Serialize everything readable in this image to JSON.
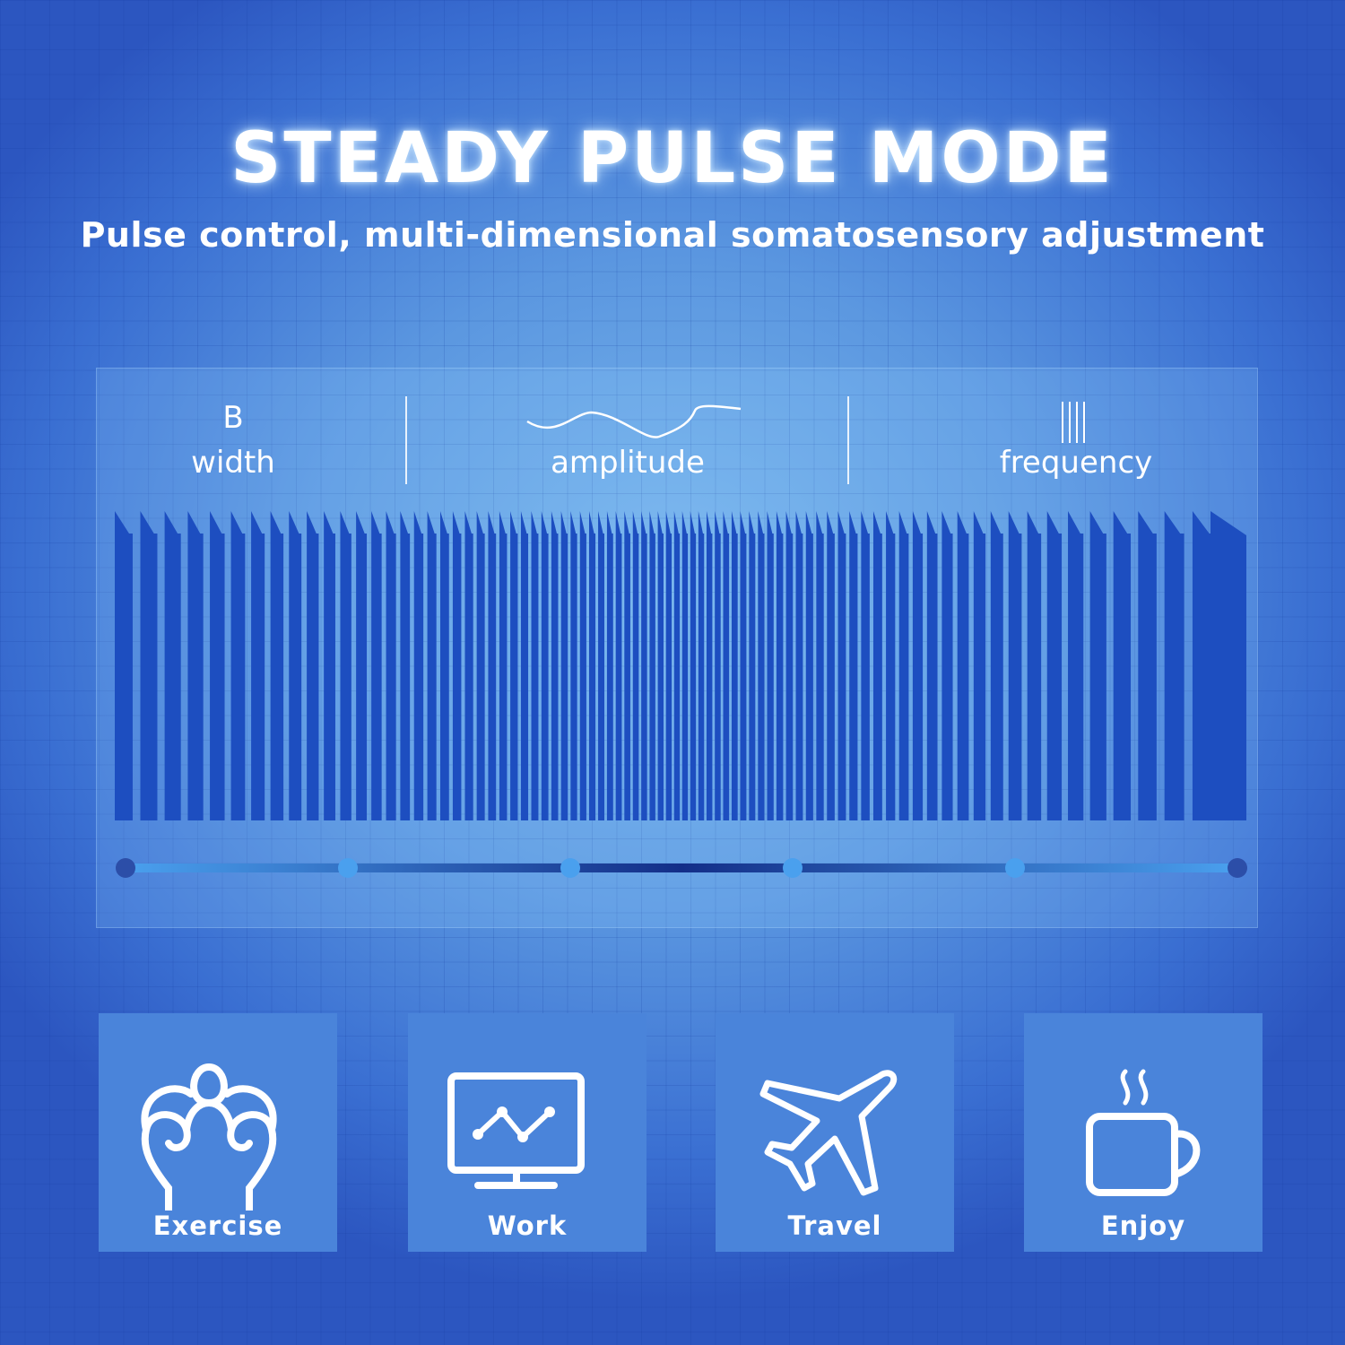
{
  "header": {
    "title": "STEADY PULSE MODE",
    "subtitle": "Pulse control, multi-dimensional somatosensory adjustment"
  },
  "parameters": [
    {
      "glyph": "B",
      "label": "width"
    },
    {
      "label": "amplitude"
    },
    {
      "label": "frequency"
    }
  ],
  "slider": {
    "stops": 6
  },
  "colors": {
    "bar": "#1d4ec0",
    "slider_dark": "#132e88",
    "slider_light": "#4aa0ee",
    "tile": "#4a84da"
  },
  "modes": [
    {
      "label": "Exercise",
      "icon": "muscle-icon"
    },
    {
      "label": "Work",
      "icon": "monitor-chart-icon"
    },
    {
      "label": "Travel",
      "icon": "airplane-icon"
    },
    {
      "label": "Enjoy",
      "icon": "coffee-cup-icon"
    }
  ]
}
